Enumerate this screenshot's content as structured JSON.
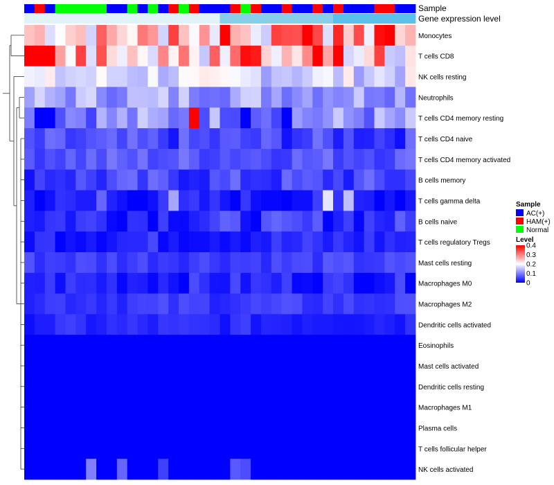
{
  "chart_data": {
    "type": "heatmap",
    "title": "",
    "row_labels": [
      "Monocytes",
      "T cells CD8",
      "NK cells resting",
      "Neutrophils",
      "T cells CD4 memory resting",
      "T cells CD4 naive",
      "T cells CD4 memory activated",
      "B cells memory",
      "T cells gamma delta",
      "B cells naive",
      "T cells regulatory  Tregs",
      "Mast cells resting",
      "Macrophages M0",
      "Macrophages M2",
      "Dendritic cells activated",
      "Eosinophils",
      "Mast cells activated",
      "Dendritic cells resting",
      "Macrophages M1",
      "Plasma cells",
      "T cells follicular helper",
      "NK cells activated"
    ],
    "column_count": 38,
    "column_annotations": {
      "sample_track_label": "Sample",
      "sample_groups": [
        "AC",
        "HAM",
        "AC",
        "N",
        "N",
        "N",
        "N",
        "N",
        "AC",
        "AC",
        "N",
        "AC",
        "N",
        "AC",
        "HAM",
        "N",
        "HAM",
        "AC",
        "AC",
        "AC",
        "HAM",
        "N",
        "HAM",
        "AC",
        "AC",
        "HAM",
        "AC",
        "AC",
        "HAM",
        "AC",
        "HAM",
        "AC",
        "AC",
        "AC",
        "HAM",
        "HAM",
        "AC",
        "AC"
      ],
      "expression_track_label": "Gene expression level",
      "expression_gradient": [
        "#e0f3f8",
        "#87ceeb",
        "#5bc0eb"
      ]
    },
    "legends": [
      {
        "title": "Sample",
        "entries": [
          {
            "label": "AC(+)",
            "color": "#0000ff"
          },
          {
            "label": "HAM(+)",
            "color": "#ff0000"
          },
          {
            "label": "Normal",
            "color": "#00ff00"
          }
        ]
      },
      {
        "title": "Level",
        "scale": [
          0,
          0.4
        ],
        "ticks": [
          "0.4",
          "0.3",
          "0.2",
          "0.1",
          "0"
        ],
        "colors": [
          "#0000ff",
          "#ffffff",
          "#ff0000"
        ],
        "midpoint": 0.2
      }
    ],
    "value_range": [
      0,
      0.4
    ],
    "row_base_values": [
      0.25,
      0.24,
      0.17,
      0.13,
      0.11,
      0.05,
      0.07,
      0.05,
      0.02,
      0.04,
      0.03,
      0.05,
      0.03,
      0.045,
      0.03,
      0,
      0,
      0,
      0,
      0,
      0,
      0
    ],
    "row_spread": [
      0.1,
      0.1,
      0.05,
      0.05,
      0.06,
      0.04,
      0.03,
      0.04,
      0.03,
      0.04,
      0.03,
      0.02,
      0.03,
      0.02,
      0.02,
      0,
      0,
      0,
      0,
      0,
      0,
      0
    ],
    "row_overrides": {
      "T cells CD8": {
        "0": 0.4,
        "1": 0.4,
        "2": 0.4,
        "5": 0.35,
        "15": 0.31,
        "21": 0.39,
        "22": 0.38,
        "28": 0.4,
        "30": 0.4,
        "34": 0.35
      },
      "Monocytes": {
        "14": 0.35,
        "19": 0.4,
        "24": 0.35,
        "25": 0.34,
        "27": 0.4,
        "30": 0.37,
        "34": 0.39,
        "35": 0.4
      },
      "T cells CD4 memory resting": {
        "16": 0.4,
        "1": 0,
        "2": 0,
        "21": 0,
        "25": 0
      },
      "T cells gamma delta": {
        "7": 0.08,
        "14": 0.13,
        "29": 0.18,
        "31": 0.15
      },
      "NK cells activated": {
        "6": 0.1,
        "9": 0.08,
        "13": 0.05,
        "20": 0.07,
        "21": 0.06
      }
    }
  }
}
